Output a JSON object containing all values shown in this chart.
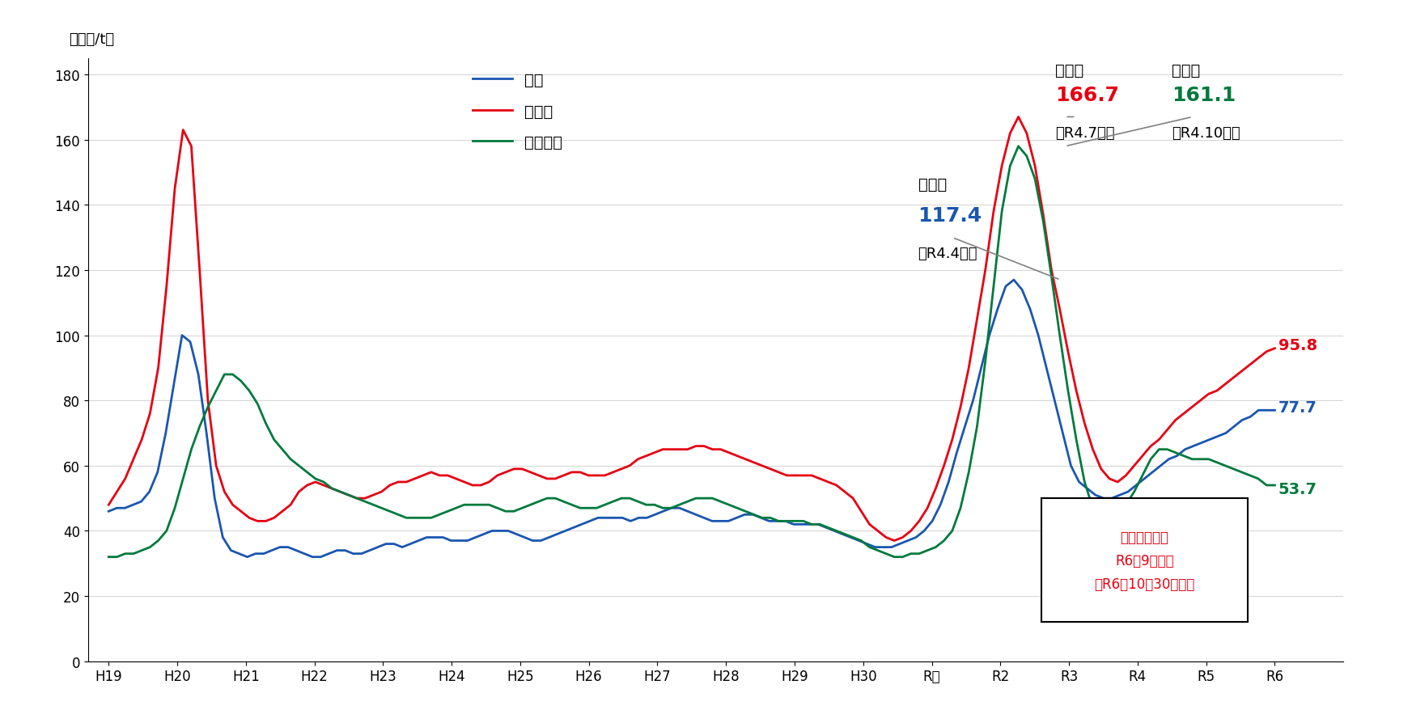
{
  "ylabel": "（千円/t）",
  "ylim": [
    0,
    185
  ],
  "yticks": [
    0,
    20,
    40,
    60,
    80,
    100,
    120,
    140,
    160,
    180
  ],
  "line_color_urea": "#1a56b0",
  "line_color_phosphate": "#e60012",
  "line_color_potash": "#007a3d",
  "legend_urea": "尿素",
  "legend_phosphate": "りん安",
  "legend_potash": "塩化加里",
  "annotation_box_text": "直近データは\nR6年9月の値\n（R6．10．30公表）",
  "annotation_box_color": "#e60012",
  "peak_urea_label": "最高値",
  "peak_urea_value": "117.4",
  "peak_urea_date": "（R4.4月）",
  "peak_urea_color": "#1a56b0",
  "peak_phosphate_label": "最高値",
  "peak_phosphate_value": "166.7",
  "peak_phosphate_date": "（R4.7月）",
  "peak_phosphate_color": "#e60012",
  "peak_potash_label": "最高値",
  "peak_potash_value": "161.1",
  "peak_potash_date": "（R4.10月）",
  "peak_potash_color": "#007a3d",
  "end_urea": "77.7",
  "end_phosphate": "95.8",
  "end_potash": "53.7",
  "xtick_labels": [
    "H19",
    "H20",
    "H21",
    "H22",
    "H23",
    "H24",
    "H25",
    "H26",
    "H27",
    "H28",
    "H29",
    "H30",
    "R元",
    "R2",
    "R3",
    "R4",
    "R5",
    "R6"
  ],
  "urea": [
    46,
    47,
    47,
    48,
    49,
    52,
    58,
    70,
    85,
    100,
    98,
    88,
    70,
    50,
    38,
    34,
    33,
    32,
    33,
    33,
    34,
    35,
    35,
    34,
    33,
    32,
    32,
    33,
    34,
    34,
    33,
    33,
    34,
    35,
    36,
    36,
    35,
    36,
    37,
    38,
    38,
    38,
    37,
    37,
    37,
    38,
    39,
    40,
    40,
    40,
    39,
    38,
    37,
    37,
    38,
    39,
    40,
    41,
    42,
    43,
    44,
    44,
    44,
    44,
    43,
    44,
    44,
    45,
    46,
    47,
    47,
    46,
    45,
    44,
    43,
    43,
    43,
    44,
    45,
    45,
    44,
    43,
    43,
    43,
    42,
    42,
    42,
    42,
    41,
    40,
    39,
    38,
    37,
    36,
    35,
    35,
    35,
    36,
    37,
    38,
    40,
    43,
    48,
    55,
    64,
    72,
    80,
    90,
    100,
    108,
    115,
    117,
    114,
    108,
    100,
    90,
    80,
    70,
    60,
    55,
    53,
    51,
    50,
    50,
    51,
    52,
    54,
    56,
    58,
    60,
    62,
    63,
    65,
    66,
    67,
    68,
    69,
    70,
    72,
    74,
    75,
    77,
    77,
    77
  ],
  "phosphate": [
    48,
    52,
    56,
    62,
    68,
    76,
    90,
    115,
    145,
    163,
    158,
    120,
    80,
    60,
    52,
    48,
    46,
    44,
    43,
    43,
    44,
    46,
    48,
    52,
    54,
    55,
    54,
    53,
    52,
    51,
    50,
    50,
    51,
    52,
    54,
    55,
    55,
    56,
    57,
    58,
    57,
    57,
    56,
    55,
    54,
    54,
    55,
    57,
    58,
    59,
    59,
    58,
    57,
    56,
    56,
    57,
    58,
    58,
    57,
    57,
    57,
    58,
    59,
    60,
    62,
    63,
    64,
    65,
    65,
    65,
    65,
    66,
    66,
    65,
    65,
    64,
    63,
    62,
    61,
    60,
    59,
    58,
    57,
    57,
    57,
    57,
    56,
    55,
    54,
    52,
    50,
    46,
    42,
    40,
    38,
    37,
    38,
    40,
    43,
    47,
    53,
    60,
    68,
    78,
    90,
    105,
    120,
    138,
    152,
    162,
    167,
    162,
    152,
    137,
    120,
    108,
    95,
    83,
    73,
    65,
    59,
    56,
    55,
    57,
    60,
    63,
    66,
    68,
    71,
    74,
    76,
    78,
    80,
    82,
    83,
    85,
    87,
    89,
    91,
    93,
    95,
    96
  ],
  "potash": [
    32,
    32,
    33,
    33,
    34,
    35,
    37,
    40,
    47,
    56,
    65,
    72,
    78,
    83,
    88,
    88,
    86,
    83,
    79,
    73,
    68,
    65,
    62,
    60,
    58,
    56,
    55,
    53,
    52,
    51,
    50,
    49,
    48,
    47,
    46,
    45,
    44,
    44,
    44,
    44,
    45,
    46,
    47,
    48,
    48,
    48,
    48,
    47,
    46,
    46,
    47,
    48,
    49,
    50,
    50,
    49,
    48,
    47,
    47,
    47,
    48,
    49,
    50,
    50,
    49,
    48,
    48,
    47,
    47,
    48,
    49,
    50,
    50,
    50,
    49,
    48,
    47,
    46,
    45,
    44,
    44,
    43,
    43,
    43,
    43,
    42,
    42,
    41,
    40,
    39,
    38,
    37,
    35,
    34,
    33,
    32,
    32,
    33,
    33,
    34,
    35,
    37,
    40,
    47,
    58,
    72,
    92,
    115,
    138,
    152,
    158,
    155,
    148,
    135,
    118,
    100,
    83,
    68,
    55,
    47,
    43,
    42,
    44,
    48,
    52,
    57,
    62,
    65,
    65,
    64,
    63,
    62,
    62,
    62,
    61,
    60,
    59,
    58,
    57,
    56,
    54,
    54
  ]
}
